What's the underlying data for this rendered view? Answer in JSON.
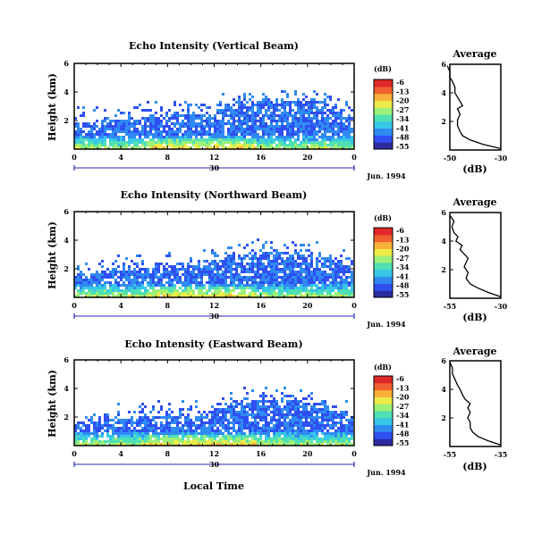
{
  "chart_data": [
    {
      "type": "heatmap",
      "title": "Echo Intensity (Vertical Beam)",
      "ylabel": "Height (km)",
      "x_ticks": [
        "0",
        "4",
        "8",
        "12",
        "16",
        "20",
        "0"
      ],
      "x_range": [
        0,
        24
      ],
      "y_ticks": [
        "2",
        "4",
        "6"
      ],
      "y_range": [
        0,
        6
      ],
      "date_tick": "30",
      "date_label": "Jun. 1994",
      "colorbar": {
        "label": "(dB)",
        "ticks": [
          "-6",
          "-13",
          "-20",
          "-27",
          "-34",
          "-41",
          "-48",
          "-55"
        ],
        "range": [
          -55,
          -6
        ]
      },
      "profile": {
        "title": "Average",
        "xlabel": "(dB)",
        "x_ticks": [
          "-50",
          "-30"
        ],
        "x_range": [
          -50,
          -30
        ],
        "y_ticks": [
          "2",
          "4",
          "6"
        ],
        "y_range": [
          0,
          6
        ],
        "points": [
          [
            -30,
            0.1
          ],
          [
            -37,
            0.4
          ],
          [
            -42,
            0.7
          ],
          [
            -45,
            1.0
          ],
          [
            -46,
            1.3
          ],
          [
            -47,
            1.7
          ],
          [
            -47,
            2.1
          ],
          [
            -46,
            2.5
          ],
          [
            -47,
            2.9
          ],
          [
            -45,
            3.1
          ],
          [
            -46,
            3.4
          ],
          [
            -47,
            3.7
          ],
          [
            -48,
            4.0
          ],
          [
            -48,
            4.4
          ],
          [
            -49,
            4.8
          ],
          [
            -50,
            5.1
          ],
          [
            -50,
            5.5
          ],
          [
            -51,
            5.9
          ]
        ]
      }
    },
    {
      "type": "heatmap",
      "title": "Echo Intensity (Northward Beam)",
      "ylabel": "Height (km)",
      "x_ticks": [
        "0",
        "4",
        "8",
        "12",
        "16",
        "20",
        "0"
      ],
      "x_range": [
        0,
        24
      ],
      "y_ticks": [
        "2",
        "4",
        "6"
      ],
      "y_range": [
        0,
        6
      ],
      "date_tick": "30",
      "date_label": "Jun. 1994",
      "colorbar": {
        "label": "(dB)",
        "ticks": [
          "-6",
          "-13",
          "-20",
          "-27",
          "-34",
          "-41",
          "-48",
          "-55"
        ],
        "range": [
          -55,
          -6
        ]
      },
      "profile": {
        "title": "Average",
        "xlabel": "(dB)",
        "x_ticks": [
          "-55",
          "-30"
        ],
        "x_range": [
          -55,
          -30
        ],
        "y_ticks": [
          "2",
          "4",
          "6"
        ],
        "y_range": [
          0,
          6
        ],
        "points": [
          [
            -30,
            0.1
          ],
          [
            -36,
            0.4
          ],
          [
            -41,
            0.7
          ],
          [
            -45,
            1.0
          ],
          [
            -47,
            1.4
          ],
          [
            -46,
            1.8
          ],
          [
            -48,
            2.2
          ],
          [
            -47,
            2.5
          ],
          [
            -46,
            2.8
          ],
          [
            -48,
            3.1
          ],
          [
            -50,
            3.4
          ],
          [
            -49,
            3.7
          ],
          [
            -52,
            4.0
          ],
          [
            -51,
            4.3
          ],
          [
            -53,
            4.6
          ],
          [
            -54,
            5.0
          ],
          [
            -53,
            5.4
          ],
          [
            -55,
            5.8
          ]
        ]
      }
    },
    {
      "type": "heatmap",
      "title": "Echo Intensity (Eastward Beam)",
      "ylabel": "Height (km)",
      "xlabel": "Local Time",
      "x_ticks": [
        "0",
        "4",
        "8",
        "12",
        "16",
        "20",
        "0"
      ],
      "x_range": [
        0,
        24
      ],
      "y_ticks": [
        "2",
        "4",
        "6"
      ],
      "y_range": [
        0,
        6
      ],
      "date_tick": "30",
      "date_label": "Jun. 1994",
      "colorbar": {
        "label": "(dB)",
        "ticks": [
          "-6",
          "-13",
          "-20",
          "-27",
          "-34",
          "-41",
          "-48",
          "-55"
        ],
        "range": [
          -55,
          -6
        ]
      },
      "profile": {
        "title": "Average",
        "xlabel": "(dB)",
        "x_ticks": [
          "-55",
          "-35"
        ],
        "x_range": [
          -55,
          -35
        ],
        "y_ticks": [
          "2",
          "4",
          "6"
        ],
        "y_range": [
          0,
          6
        ],
        "points": [
          [
            -35,
            0.1
          ],
          [
            -40,
            0.4
          ],
          [
            -44,
            0.7
          ],
          [
            -46,
            1.0
          ],
          [
            -47,
            1.3
          ],
          [
            -47,
            1.7
          ],
          [
            -48,
            2.0
          ],
          [
            -47,
            2.4
          ],
          [
            -48,
            2.7
          ],
          [
            -47,
            3.0
          ],
          [
            -49,
            3.3
          ],
          [
            -50,
            3.6
          ],
          [
            -51,
            4.0
          ],
          [
            -52,
            4.3
          ],
          [
            -53,
            4.7
          ],
          [
            -54,
            5.1
          ],
          [
            -54,
            5.5
          ],
          [
            -55,
            5.9
          ]
        ]
      }
    }
  ],
  "colors": {
    "scale": [
      "#2c2ca0",
      "#2f4ff0",
      "#2f8af2",
      "#37c7e8",
      "#4fe0b4",
      "#9cf078",
      "#ecec48",
      "#f8b038",
      "#f06030",
      "#e02828"
    ]
  }
}
